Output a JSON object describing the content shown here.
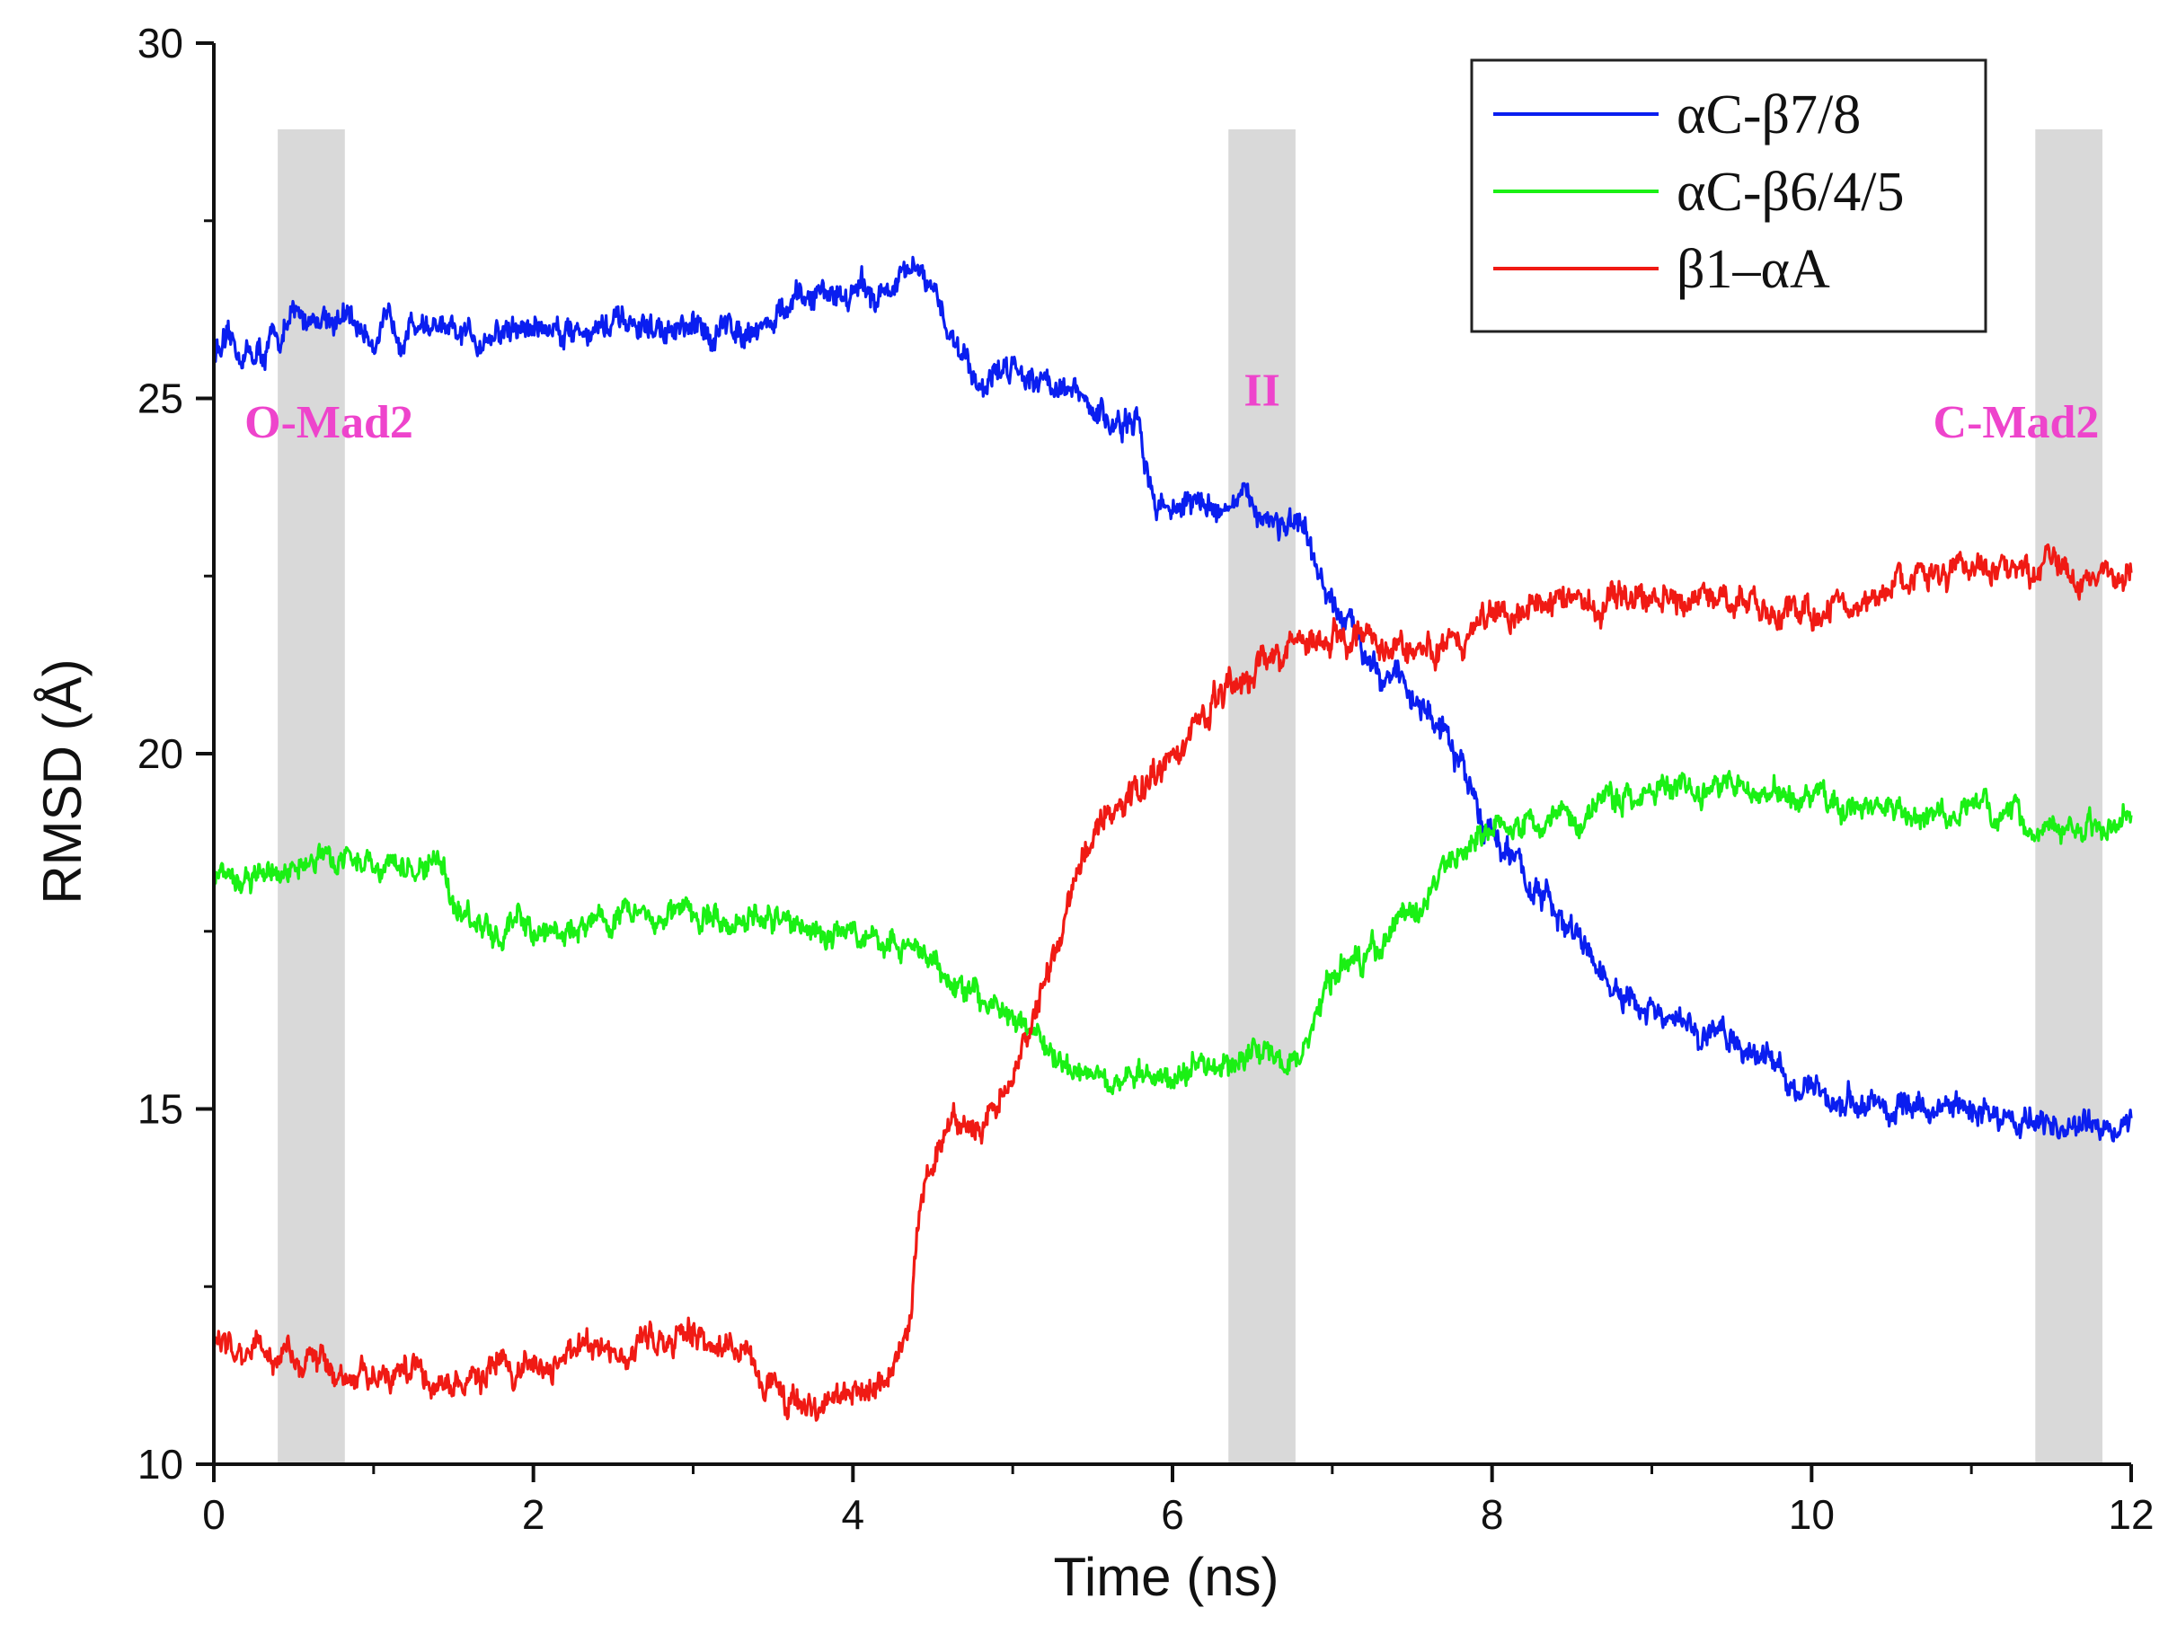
{
  "chart_data": {
    "type": "line",
    "xlabel": "Time (ns)",
    "ylabel": "RMSD (Å)",
    "xlim": [
      0,
      12
    ],
    "ylim": [
      10,
      30
    ],
    "x_ticks": [
      "0",
      "2",
      "4",
      "6",
      "8",
      "10",
      "12"
    ],
    "y_ticks": [
      "10",
      "15",
      "20",
      "25",
      "30"
    ],
    "grid": false,
    "legend_position": "top-right",
    "shaded_regions": [
      {
        "x0": 0.4,
        "x1": 0.82
      },
      {
        "x0": 6.35,
        "x1": 6.77
      },
      {
        "x0": 11.4,
        "x1": 11.82
      }
    ],
    "annotations": [
      {
        "text": "O-Mad2",
        "x": 0.72,
        "y": 24.45
      },
      {
        "text": "II",
        "x": 6.56,
        "y": 24.9
      },
      {
        "text": "C-Mad2",
        "x": 11.28,
        "y": 24.45
      }
    ],
    "annotation_color": "#ee44cc",
    "series": [
      {
        "name": "αC-β7/8",
        "color": "#0a1ef0",
        "x": [
          0,
          0.3,
          0.5,
          0.7,
          1.0,
          1.3,
          1.5,
          1.7,
          2.0,
          2.5,
          3.0,
          3.5,
          3.8,
          4.2,
          4.4,
          4.6,
          4.8,
          5.0,
          5.3,
          5.5,
          5.8,
          5.9,
          6.2,
          6.5,
          6.8,
          7.0,
          7.3,
          7.6,
          7.8,
          8.0,
          8.3,
          8.6,
          8.8,
          9.2,
          9.5,
          9.8,
          10.0,
          10.5,
          11.0,
          11.4,
          11.7,
          12.0
        ],
        "y": [
          25.7,
          25.6,
          26.1,
          26.2,
          25.9,
          26.1,
          25.8,
          25.9,
          26.0,
          26.0,
          25.9,
          26.1,
          26.5,
          26.5,
          26.8,
          26.0,
          25.2,
          25.5,
          25.2,
          24.8,
          24.5,
          23.5,
          23.5,
          23.5,
          23.1,
          22.0,
          21.3,
          20.6,
          19.8,
          18.9,
          18.0,
          17.2,
          16.5,
          16.1,
          16.0,
          15.6,
          15.2,
          15.0,
          15.0,
          14.8,
          14.7,
          14.9
        ],
        "noise": 0.22
      },
      {
        "name": "αC-β6/4/5",
        "color": "#1af014",
        "x": [
          0,
          0.4,
          0.8,
          1.2,
          1.4,
          1.6,
          1.8,
          2.2,
          2.6,
          3.0,
          3.4,
          3.8,
          4.0,
          4.4,
          4.8,
          5.0,
          5.2,
          5.5,
          5.8,
          6.2,
          6.6,
          6.8,
          7.0,
          7.3,
          7.6,
          7.9,
          8.2,
          8.6,
          9.0,
          9.4,
          9.8,
          10.2,
          10.6,
          11.0,
          11.4,
          11.7,
          12.0
        ],
        "y": [
          18.2,
          18.3,
          18.6,
          18.3,
          18.5,
          17.6,
          17.5,
          17.5,
          17.8,
          17.7,
          17.7,
          17.5,
          17.5,
          17.2,
          16.5,
          16.4,
          15.8,
          15.6,
          15.4,
          15.6,
          15.8,
          15.6,
          16.8,
          17.3,
          18.0,
          18.9,
          19.0,
          19.2,
          19.6,
          19.5,
          19.4,
          19.3,
          19.1,
          19.2,
          19.0,
          19.0,
          19.0
        ],
        "noise": 0.2
      },
      {
        "name": "β1–αA",
        "color": "#f01a14",
        "x": [
          0,
          0.3,
          0.6,
          0.8,
          1.0,
          1.5,
          2.0,
          2.5,
          3.0,
          3.3,
          3.6,
          3.9,
          4.2,
          4.35,
          4.45,
          4.6,
          4.8,
          5.0,
          5.2,
          5.4,
          5.6,
          5.9,
          6.2,
          6.5,
          6.8,
          7.0,
          7.3,
          7.6,
          7.8,
          8.0,
          8.5,
          9.0,
          9.5,
          10.0,
          10.5,
          11.0,
          11.5,
          12.0
        ],
        "y": [
          11.7,
          11.5,
          11.6,
          11.1,
          11.3,
          11.2,
          11.4,
          11.7,
          11.8,
          11.6,
          10.8,
          11.0,
          11.2,
          12.0,
          14.0,
          14.8,
          14.6,
          15.5,
          16.8,
          18.3,
          19.2,
          19.8,
          20.4,
          21.2,
          21.6,
          21.7,
          21.6,
          21.4,
          21.6,
          22.0,
          22.2,
          22.2,
          22.1,
          22.0,
          22.3,
          22.6,
          22.6,
          22.4
        ],
        "noise": 0.22
      }
    ]
  }
}
